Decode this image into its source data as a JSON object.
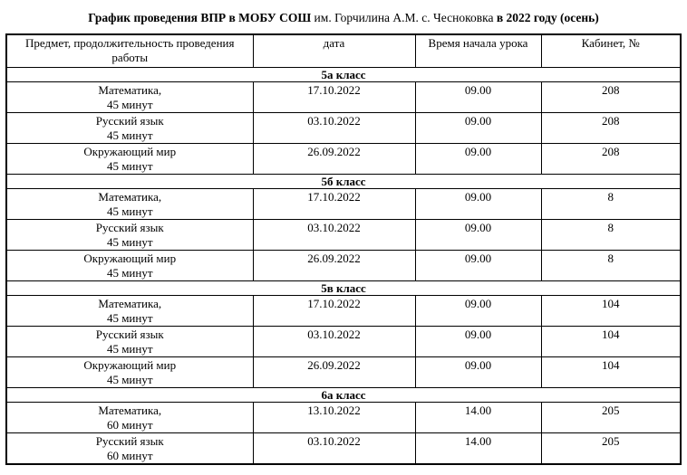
{
  "title": {
    "bold_prefix": "График проведения ВПР в МОБУ СОШ",
    "normal_middle": " им. Горчилина А.М. с. Чесноковка ",
    "bold_suffix": "в 2022 году (осень)"
  },
  "table": {
    "headers": [
      "Предмет, продолжительность проведения работы",
      "дата",
      "Время начала урока",
      "Кабинет, №"
    ],
    "sections": [
      {
        "class_label": "5а класс",
        "rows": [
          {
            "subject": "Математика,",
            "duration": "45 минут",
            "date": "17.10.2022",
            "time": "09.00",
            "room": "208"
          },
          {
            "subject": "Русский язык",
            "duration": "45 минут",
            "date": "03.10.2022",
            "time": "09.00",
            "room": "208"
          },
          {
            "subject": "Окружающий мир",
            "duration": "45 минут",
            "date": "26.09.2022",
            "time": "09.00",
            "room": "208"
          }
        ]
      },
      {
        "class_label": "5б класс",
        "rows": [
          {
            "subject": "Математика,",
            "duration": "45 минут",
            "date": "17.10.2022",
            "time": "09.00",
            "room": "8"
          },
          {
            "subject": "Русский язык",
            "duration": "45 минут",
            "date": "03.10.2022",
            "time": "09.00",
            "room": "8"
          },
          {
            "subject": "Окружающий мир",
            "duration": "45 минут",
            "date": "26.09.2022",
            "time": "09.00",
            "room": "8"
          }
        ]
      },
      {
        "class_label": "5в класс",
        "rows": [
          {
            "subject": "Математика,",
            "duration": "45 минут",
            "date": "17.10.2022",
            "time": "09.00",
            "room": "104"
          },
          {
            "subject": "Русский язык",
            "duration": "45 минут",
            "date": "03.10.2022",
            "time": "09.00",
            "room": "104"
          },
          {
            "subject": "Окружающий мир",
            "duration": "45 минут",
            "date": "26.09.2022",
            "time": "09.00",
            "room": "104"
          }
        ]
      },
      {
        "class_label": "6а класс",
        "rows": [
          {
            "subject": "Математика,",
            "duration": "60 минут",
            "date": "13.10.2022",
            "time": "14.00",
            "room": "205"
          },
          {
            "subject": "Русский язык",
            "duration": "60 минут",
            "date": "03.10.2022",
            "time": "14.00",
            "room": "205"
          }
        ]
      }
    ]
  }
}
